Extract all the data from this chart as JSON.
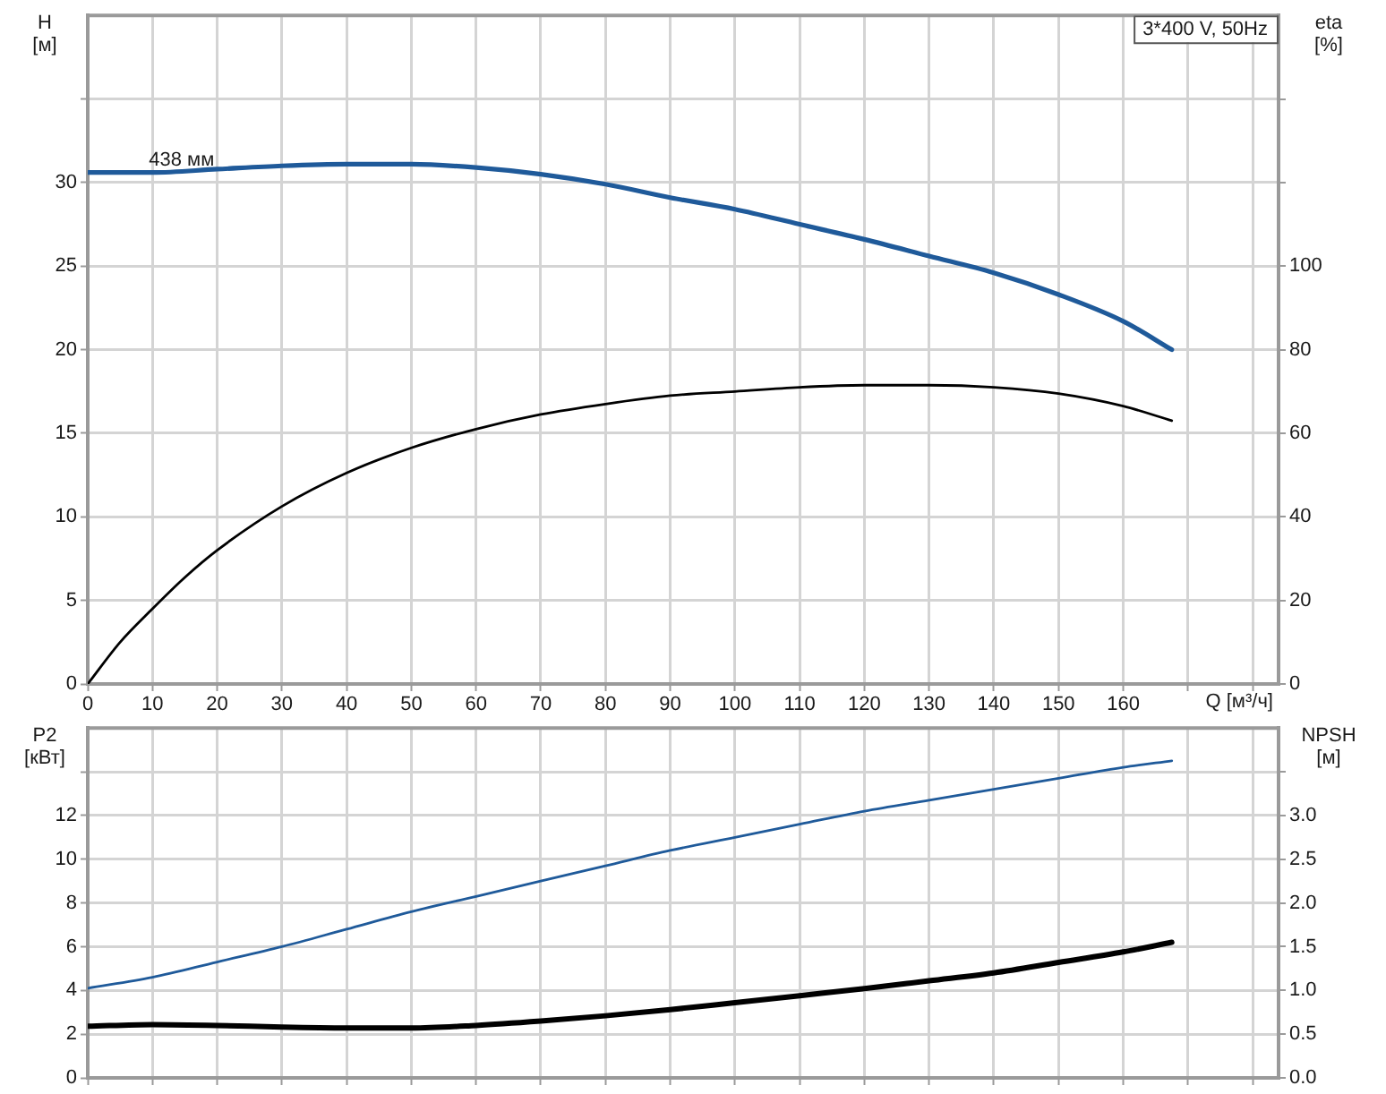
{
  "chart_data": [
    {
      "type": "line",
      "title": "3*400 V, 50Hz",
      "xlabel": "Q [м³/ч]",
      "ylabel": "H [м]",
      "y2label": "eta [%]",
      "x": [
        0,
        10,
        20,
        30,
        40,
        50,
        60,
        70,
        80,
        90,
        100,
        110,
        120,
        130,
        140,
        150,
        160,
        167.5
      ],
      "series": [
        {
          "color": "#1f5a9a",
          "values": [
            30.6,
            30.6,
            30.8,
            31.0,
            31.1,
            31.1,
            30.9,
            30.5,
            29.9,
            29.1,
            28.4,
            27.5,
            26.6,
            25.6,
            24.6,
            23.3,
            21.7,
            20.0
          ]
        },
        {
          "color": "#000000",
          "axis": "y2",
          "x": [
            0,
            5,
            10,
            15,
            20,
            30,
            40,
            50,
            60,
            70,
            80,
            90,
            100,
            110,
            120,
            130,
            140,
            150,
            160,
            167.5
          ],
          "values": [
            0,
            10,
            18,
            25.5,
            32,
            42.5,
            50.5,
            56.5,
            61,
            64.5,
            67,
            69,
            70,
            71,
            71.5,
            71.5,
            71,
            69.5,
            66.5,
            63
          ]
        }
      ],
      "xlim": [
        0,
        184
      ],
      "xticks": [
        0,
        10,
        20,
        30,
        40,
        50,
        60,
        70,
        80,
        90,
        100,
        110,
        120,
        130,
        140,
        150,
        160,
        {
          "value": 170,
          "label": null
        },
        {
          "value": 180,
          "label": null
        }
      ],
      "ylim": [
        0,
        40
      ],
      "yticks": [
        0,
        5,
        10,
        15,
        20,
        25,
        30,
        {
          "value": 35,
          "label": null
        }
      ],
      "y2lim": [
        0,
        160
      ],
      "y2ticks": [
        0,
        20,
        40,
        60,
        80,
        100,
        {
          "value": 120,
          "label": null
        },
        {
          "value": 140,
          "label": null
        }
      ],
      "grid": true,
      "marker": "none",
      "annotations": [
        {
          "text": "438 мм",
          "x": 14.5,
          "y": 30.7
        }
      ]
    },
    {
      "type": "line",
      "ylabel": "P2 [кВт]",
      "y2label": "NPSH [м]",
      "x": [
        0,
        10,
        20,
        30,
        40,
        50,
        60,
        70,
        80,
        90,
        100,
        110,
        120,
        130,
        140,
        150,
        160,
        167.5
      ],
      "series": [
        {
          "color": "#1f5a9a",
          "values": [
            4.1,
            4.6,
            5.3,
            6.0,
            6.8,
            7.6,
            8.3,
            9.0,
            9.7,
            10.4,
            11.0,
            11.6,
            12.2,
            12.7,
            13.2,
            13.7,
            14.2,
            14.5
          ]
        },
        {
          "color": "#000000",
          "axis": "y2",
          "values": [
            0.59,
            0.61,
            0.6,
            0.58,
            0.57,
            0.57,
            0.6,
            0.65,
            0.71,
            0.78,
            0.86,
            0.94,
            1.02,
            1.11,
            1.2,
            1.32,
            1.44,
            1.55
          ]
        }
      ],
      "xlim": [
        0,
        184
      ],
      "xticks": [
        0,
        10,
        20,
        30,
        40,
        50,
        60,
        70,
        80,
        90,
        100,
        110,
        120,
        130,
        140,
        150,
        160,
        170,
        180
      ],
      "ylim": [
        0,
        16
      ],
      "yticks": [
        0,
        2,
        4,
        6,
        8,
        10,
        12,
        {
          "value": 14,
          "label": null
        }
      ],
      "y2lim": [
        0,
        4
      ],
      "y2ticks": [
        {
          "value": 0,
          "label": "0.0"
        },
        0.5,
        {
          "value": 1,
          "label": "1.0"
        },
        1.5,
        {
          "value": 2,
          "label": "2.0"
        },
        2.5,
        {
          "value": 3,
          "label": "3.0"
        },
        {
          "value": 3.5,
          "label": null
        }
      ],
      "grid": true,
      "marker": "none",
      "tick_labels": "y"
    }
  ]
}
